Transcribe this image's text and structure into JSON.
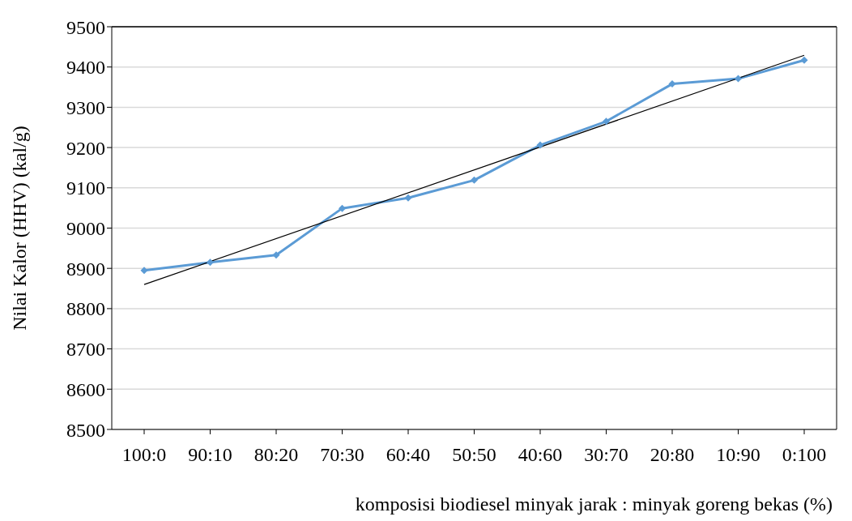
{
  "chart_data": {
    "type": "line",
    "xlabel": "komposisi biodiesel minyak jarak : minyak goreng bekas  (%)",
    "ylabel": "Nilai Kalor (HHV) (kal/g)",
    "categories": [
      "100:0",
      "90:10",
      "80:20",
      "70:30",
      "60:40",
      "50:50",
      "40:60",
      "30:70",
      "20:80",
      "10:90",
      "0:100"
    ],
    "series": [
      {
        "color": "#5b9bd5",
        "marker": "diamond",
        "values": [
          8895,
          8915,
          8933,
          9049,
          9075,
          9119,
          9206,
          9265,
          9358,
          9371,
          9417
        ]
      },
      {
        "type": "line",
        "color": "#000000",
        "marker": "none",
        "x": [
          "100:0",
          "0:100"
        ],
        "values": [
          8860,
          9429
        ]
      }
    ],
    "ylim": [
      8500,
      9500
    ],
    "yticks": [
      8500,
      8600,
      8700,
      8800,
      8900,
      9000,
      9100,
      9200,
      9300,
      9400,
      9500
    ],
    "grid": "y"
  }
}
